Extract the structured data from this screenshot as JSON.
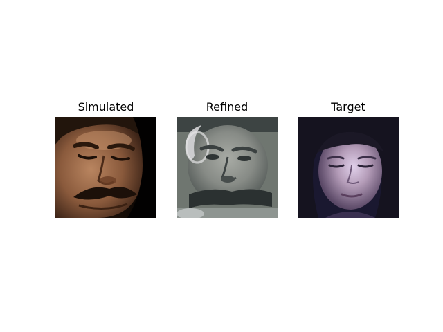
{
  "panels": [
    {
      "title": "Simulated",
      "image": {
        "depicts": "close-up face photo, man with dark mustache, warm skin tones, dark background",
        "colors": {
          "background": "#050302",
          "skin": "#9a6a4a",
          "shadow": "#3a2216",
          "hair": "#20140c",
          "mustache": "#1e120a"
        }
      }
    },
    {
      "title": "Refined",
      "image": {
        "depicts": "blurry grayish refined face image with distorted features",
        "colors": {
          "background": "#6f7670",
          "skin": "#9b9e98",
          "shadow": "#4a5150",
          "highlight": "#d4d4d6",
          "dark": "#2b3131"
        }
      }
    },
    {
      "title": "Target",
      "image": {
        "depicts": "low-light face photo, woman with dark hair, bluish tint",
        "colors": {
          "background": "#1a1830",
          "skin": "#a88fa8",
          "highlight": "#e0d0ea",
          "hair": "#15131f",
          "shadow": "#4a3a55"
        }
      }
    }
  ]
}
